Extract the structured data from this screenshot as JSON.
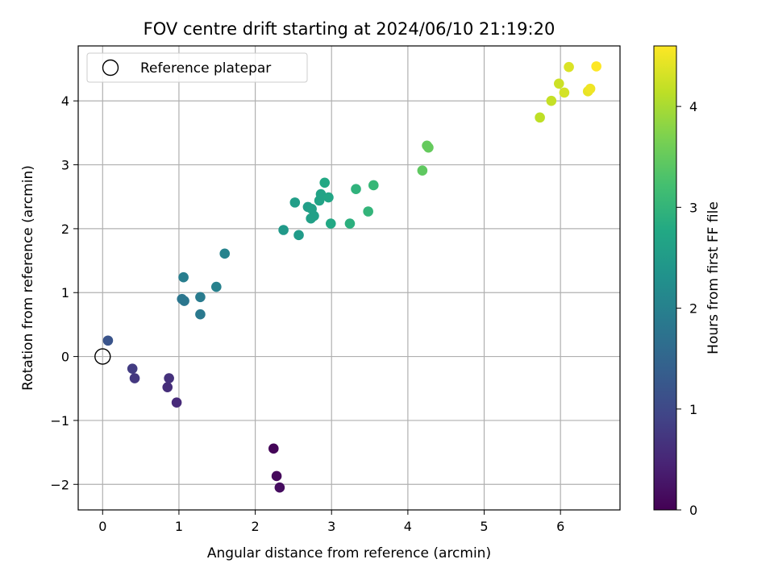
{
  "chart_data": {
    "type": "scatter",
    "title": "FOV centre drift starting at 2024/06/10 21:19:20",
    "xlabel": "Angular distance from reference (arcmin)",
    "ylabel": "Rotation from reference (arcmin)",
    "xlim": [
      -0.32,
      6.78
    ],
    "ylim": [
      -2.4,
      4.86
    ],
    "x_ticks": [
      0,
      1,
      2,
      3,
      4,
      5,
      6
    ],
    "y_ticks": [
      -2,
      -1,
      0,
      1,
      2,
      3,
      4
    ],
    "x_tick_labels": [
      "0",
      "1",
      "2",
      "3",
      "4",
      "5",
      "6"
    ],
    "y_tick_labels": [
      "−2",
      "−1",
      "0",
      "1",
      "2",
      "3",
      "4"
    ],
    "grid": true,
    "legend": {
      "position": "top-left",
      "entries": [
        "Reference platepar"
      ]
    },
    "reference_point": {
      "x": 0,
      "y": 0
    },
    "colorbar": {
      "label": "Hours from first FF file",
      "colormap": "viridis",
      "range": [
        0,
        4.6
      ],
      "ticks": [
        0,
        1,
        2,
        3,
        4
      ],
      "tick_labels": [
        "0",
        "1",
        "2",
        "3",
        "4"
      ]
    },
    "points": [
      {
        "x": 2.24,
        "y": -1.44,
        "c": 0.05
      },
      {
        "x": 2.28,
        "y": -1.87,
        "c": 0.1
      },
      {
        "x": 2.32,
        "y": -2.05,
        "c": 0.15
      },
      {
        "x": 0.97,
        "y": -0.72,
        "c": 0.55
      },
      {
        "x": 0.85,
        "y": -0.48,
        "c": 0.6
      },
      {
        "x": 0.87,
        "y": -0.34,
        "c": 0.65
      },
      {
        "x": 0.42,
        "y": -0.34,
        "c": 0.75
      },
      {
        "x": 0.39,
        "y": -0.19,
        "c": 0.8
      },
      {
        "x": 0.07,
        "y": 0.25,
        "c": 1.2
      },
      {
        "x": 1.07,
        "y": 0.87,
        "c": 1.8
      },
      {
        "x": 1.04,
        "y": 0.9,
        "c": 1.8
      },
      {
        "x": 1.28,
        "y": 0.66,
        "c": 1.85
      },
      {
        "x": 1.28,
        "y": 0.93,
        "c": 1.9
      },
      {
        "x": 1.06,
        "y": 1.24,
        "c": 1.95
      },
      {
        "x": 1.49,
        "y": 1.09,
        "c": 2.0
      },
      {
        "x": 1.6,
        "y": 1.61,
        "c": 2.05
      },
      {
        "x": 2.37,
        "y": 1.98,
        "c": 2.45
      },
      {
        "x": 2.57,
        "y": 1.9,
        "c": 2.5
      },
      {
        "x": 2.52,
        "y": 2.41,
        "c": 2.55
      },
      {
        "x": 2.69,
        "y": 2.34,
        "c": 2.55
      },
      {
        "x": 2.74,
        "y": 2.31,
        "c": 2.6
      },
      {
        "x": 2.73,
        "y": 2.16,
        "c": 2.6
      },
      {
        "x": 2.77,
        "y": 2.2,
        "c": 2.6
      },
      {
        "x": 2.84,
        "y": 2.44,
        "c": 2.65
      },
      {
        "x": 2.86,
        "y": 2.54,
        "c": 2.65
      },
      {
        "x": 2.96,
        "y": 2.49,
        "c": 2.7
      },
      {
        "x": 2.91,
        "y": 2.72,
        "c": 2.75
      },
      {
        "x": 2.99,
        "y": 2.08,
        "c": 2.75
      },
      {
        "x": 3.24,
        "y": 2.08,
        "c": 2.9
      },
      {
        "x": 3.32,
        "y": 2.62,
        "c": 2.95
      },
      {
        "x": 3.48,
        "y": 2.27,
        "c": 3.0
      },
      {
        "x": 3.55,
        "y": 2.68,
        "c": 3.05
      },
      {
        "x": 4.19,
        "y": 2.91,
        "c": 3.45
      },
      {
        "x": 4.25,
        "y": 3.3,
        "c": 3.5
      },
      {
        "x": 4.27,
        "y": 3.27,
        "c": 3.5
      },
      {
        "x": 5.73,
        "y": 3.74,
        "c": 4.15
      },
      {
        "x": 5.88,
        "y": 4.0,
        "c": 4.2
      },
      {
        "x": 5.98,
        "y": 4.27,
        "c": 4.25
      },
      {
        "x": 6.05,
        "y": 4.13,
        "c": 4.3
      },
      {
        "x": 6.11,
        "y": 4.53,
        "c": 4.35
      },
      {
        "x": 6.36,
        "y": 4.15,
        "c": 4.45
      },
      {
        "x": 6.39,
        "y": 4.19,
        "c": 4.5
      },
      {
        "x": 6.47,
        "y": 4.54,
        "c": 4.6
      }
    ]
  }
}
